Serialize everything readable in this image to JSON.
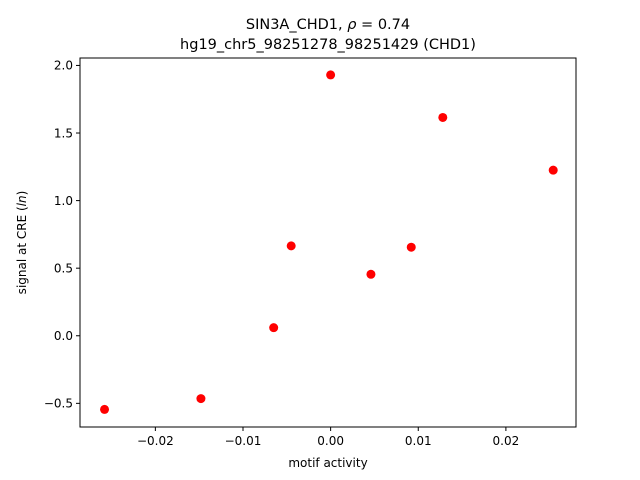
{
  "chart_data": {
    "type": "scatter",
    "title_line1_prefix": "SIN3A_CHD1, ",
    "title_line1_rho": "ρ",
    "title_line1_suffix": " = 0.74",
    "title_line2": "hg19_chr5_98251278_98251429 (CHD1)",
    "xlabel": "motif activity",
    "ylabel_prefix": "signal at CRE (",
    "ylabel_italic": "ln",
    "ylabel_suffix": ")",
    "xlim": [
      -0.0286,
      0.028
    ],
    "ylim": [
      -0.675,
      2.055
    ],
    "xticks": [
      -0.02,
      -0.01,
      0.0,
      0.01,
      0.02
    ],
    "xtick_labels": [
      "−0.02",
      "−0.01",
      "0.00",
      "0.01",
      "0.02"
    ],
    "yticks": [
      -0.5,
      0.0,
      0.5,
      1.0,
      1.5,
      2.0
    ],
    "ytick_labels": [
      "−0.5",
      "0.0",
      "0.5",
      "1.0",
      "1.5",
      "2.0"
    ],
    "marker_color": "#ff0000",
    "grid": false,
    "points": [
      {
        "x": -0.0258,
        "y": -0.545
      },
      {
        "x": -0.0148,
        "y": -0.465
      },
      {
        "x": -0.0065,
        "y": 0.06
      },
      {
        "x": -0.0045,
        "y": 0.665
      },
      {
        "x": 0.0,
        "y": 1.93
      },
      {
        "x": 0.0046,
        "y": 0.455
      },
      {
        "x": 0.0092,
        "y": 0.655
      },
      {
        "x": 0.0128,
        "y": 1.615
      },
      {
        "x": 0.0254,
        "y": 1.225
      }
    ]
  }
}
